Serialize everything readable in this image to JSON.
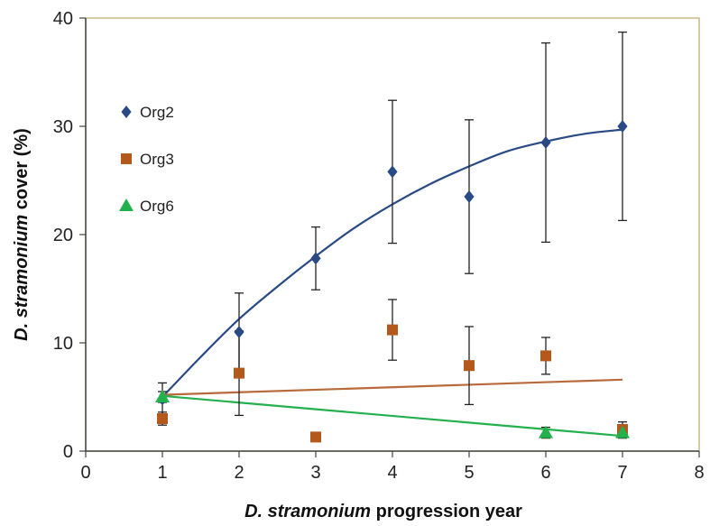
{
  "chart_data": {
    "type": "scatter",
    "title": "",
    "xlabel": "D. stramonium progression year",
    "xlabel_italic_part": "D. stramonium",
    "xlabel_rest": "progression year",
    "ylabel": "D. stramonium cover (%)",
    "ylabel_italic_part": "D. stramonium",
    "ylabel_rest": "cover (%)",
    "xlim": [
      0,
      8
    ],
    "ylim": [
      0,
      40
    ],
    "x_ticks": [
      0,
      1,
      2,
      3,
      4,
      5,
      6,
      7,
      8
    ],
    "y_ticks": [
      0,
      10,
      20,
      30,
      40
    ],
    "grid": false,
    "legend_placement": "upper-left",
    "plot_border_color": "#c8b98a",
    "series": [
      {
        "name": "Org2",
        "marker": "diamond",
        "color": "#2a4a86",
        "line_color": "#2a4a86",
        "trend": "polynomial",
        "x": [
          1,
          2,
          3,
          4,
          5,
          6,
          7
        ],
        "y": [
          4.8,
          11.0,
          17.8,
          25.8,
          23.5,
          28.5,
          30.0
        ],
        "err": [
          1.5,
          3.6,
          2.9,
          6.6,
          7.1,
          9.2,
          8.7
        ],
        "trend_x": [
          1,
          1.5,
          2,
          2.5,
          3,
          3.5,
          4,
          4.5,
          5,
          5.5,
          6,
          6.5,
          7
        ],
        "trend_y": [
          5.0,
          8.7,
          12.2,
          15.2,
          18.0,
          20.6,
          22.8,
          24.7,
          26.3,
          27.7,
          28.6,
          29.3,
          29.7
        ]
      },
      {
        "name": "Org3",
        "marker": "square",
        "color": "#b5581b",
        "line_color": "#b86a3a",
        "trend": "linear",
        "x": [
          1,
          2,
          3,
          4,
          6,
          7
        ],
        "y": [
          3.0,
          7.2,
          1.3,
          11.2,
          8.8,
          2.0
        ],
        "err": [
          0.6,
          3.9,
          0.4,
          2.8,
          1.7,
          0.7
        ],
        "extra_points": [
          {
            "x": 5,
            "y": 7.9,
            "err": 3.6
          }
        ],
        "trend_x": [
          1,
          7
        ],
        "trend_y": [
          5.2,
          6.6
        ]
      },
      {
        "name": "Org6",
        "marker": "triangle",
        "color": "#22b14c",
        "line_color": "#22b14c",
        "trend": "linear",
        "x": [
          1,
          6,
          7
        ],
        "y": [
          5.0,
          1.7,
          1.7
        ],
        "err": [
          0.5,
          0.5,
          0.5
        ],
        "trend_x": [
          1,
          7
        ],
        "trend_y": [
          5.1,
          1.4
        ]
      }
    ]
  }
}
